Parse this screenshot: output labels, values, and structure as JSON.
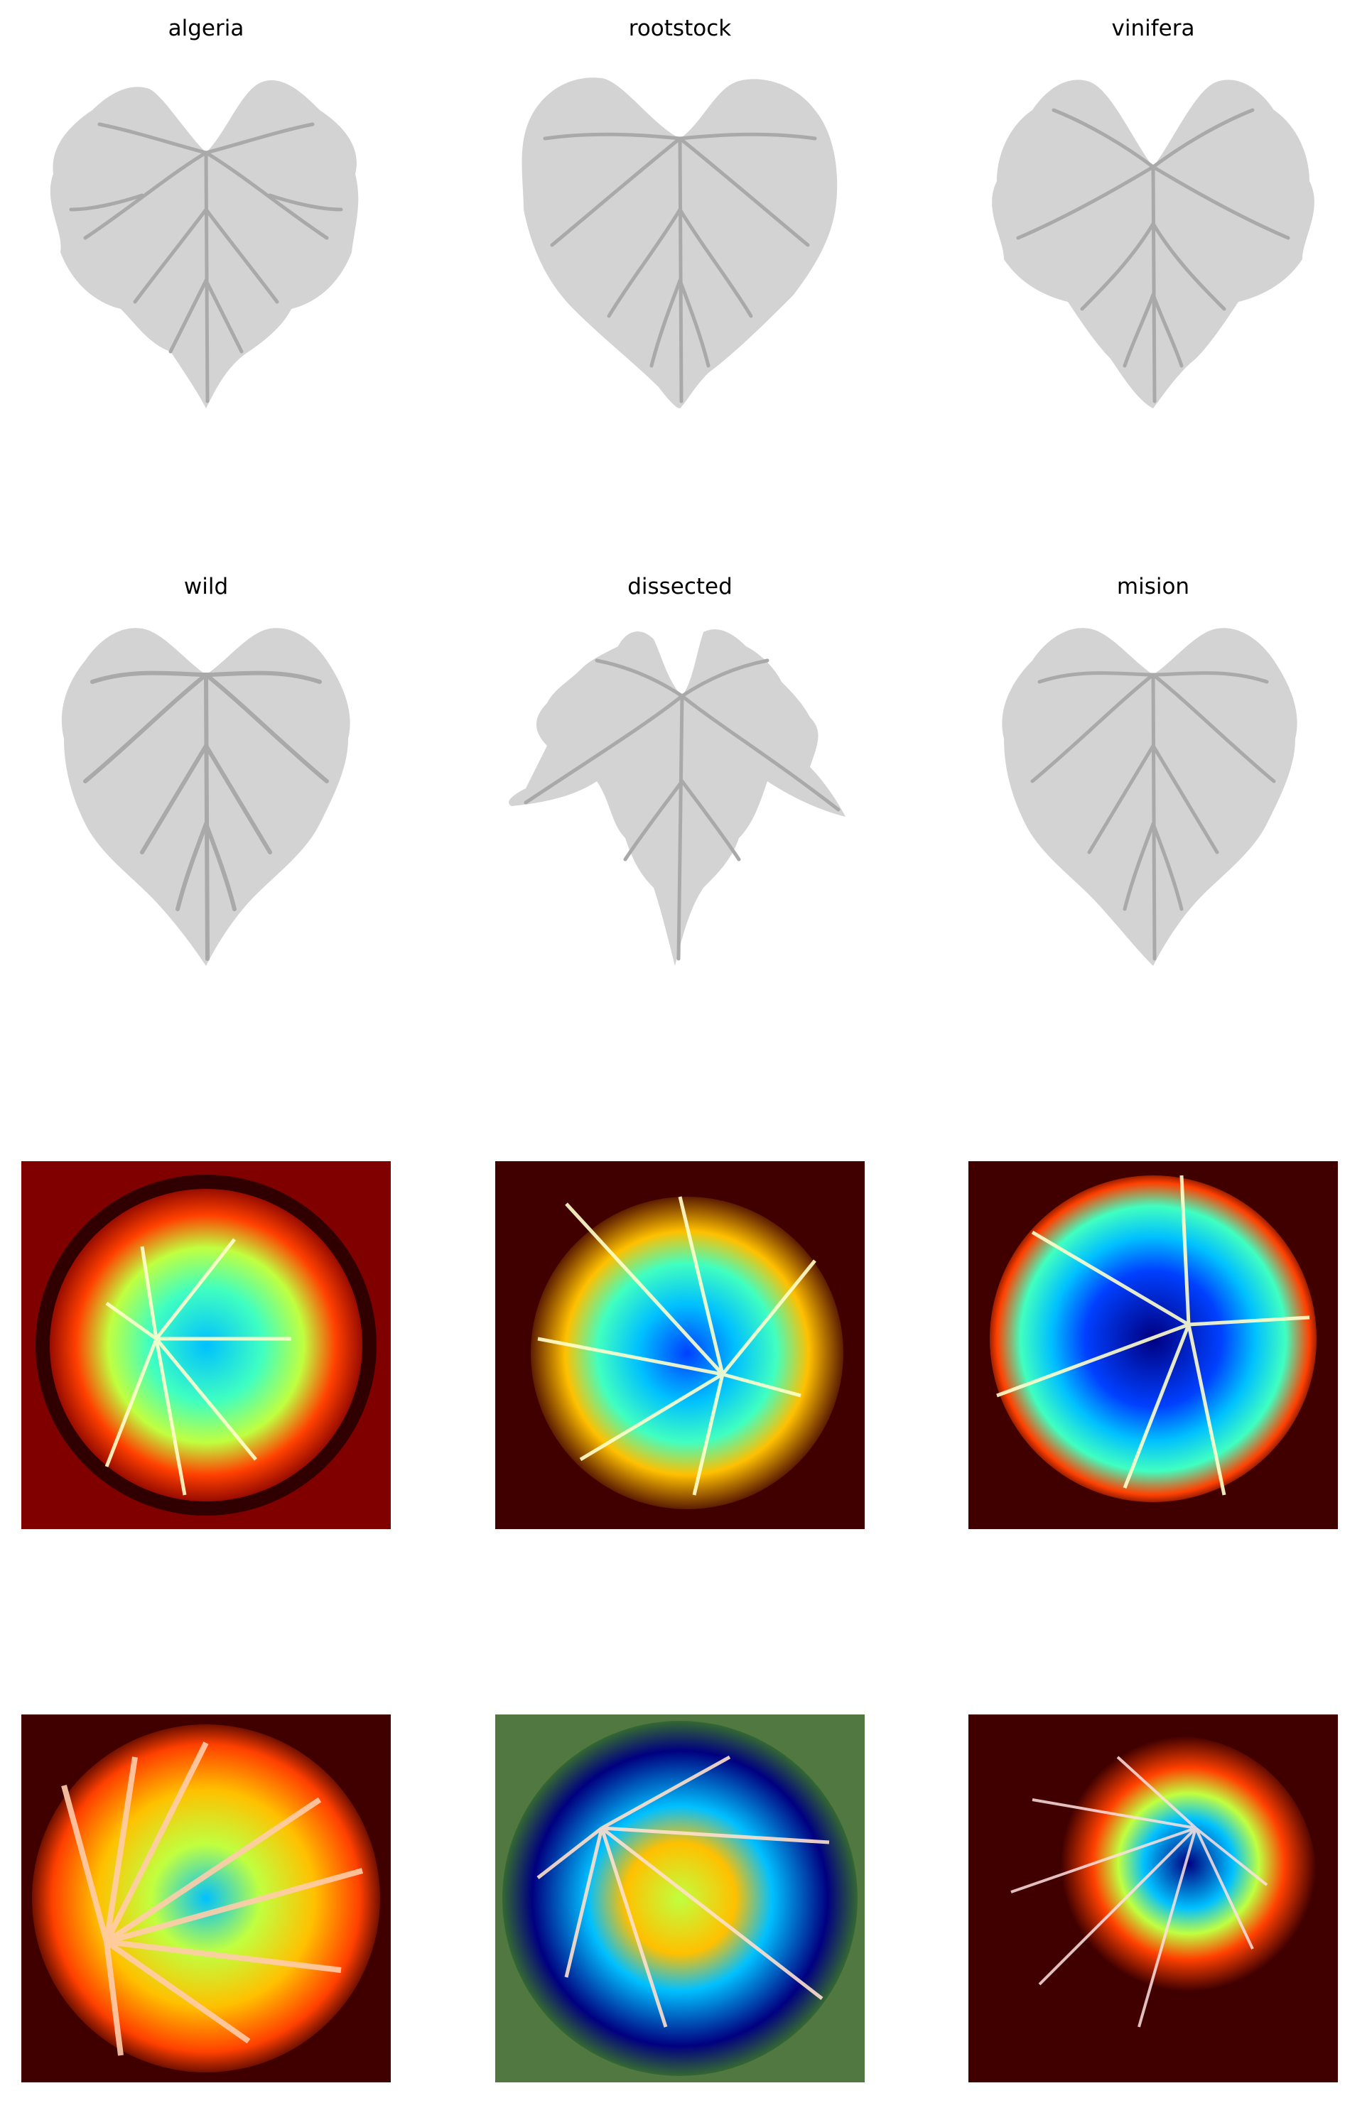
{
  "figure": {
    "leaf_titles": [
      "algeria",
      "rootstock",
      "vinifera",
      "wild",
      "dissected",
      "mision"
    ],
    "colors": {
      "leaf_fill": "#d3d3d3",
      "vein_stroke": "#a9a9a9",
      "heatmap_background": "#400000",
      "heatmap_colormap": [
        "#000080",
        "#0040ff",
        "#00c0ff",
        "#40ffc0",
        "#c0ff40",
        "#ffc000",
        "#ff4000",
        "#800000"
      ]
    }
  }
}
